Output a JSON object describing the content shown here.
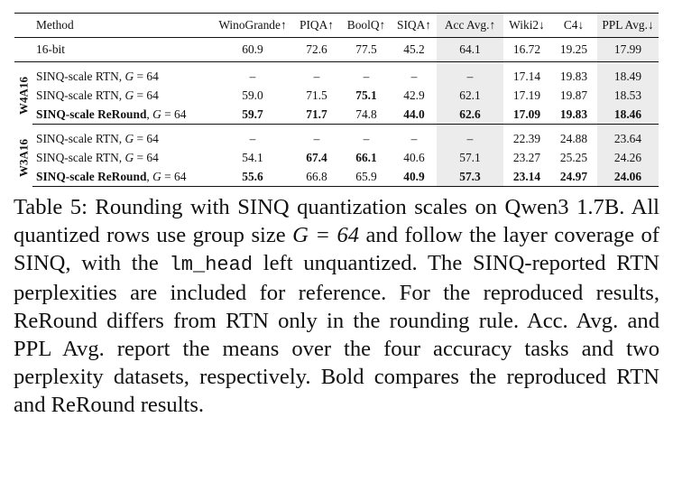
{
  "table": {
    "headers": {
      "method": "Method",
      "wino": "WinoGrande↑",
      "piqa": "PIQA↑",
      "boolq": "BoolQ↑",
      "siqa": "SIQA↑",
      "acc": "Acc Avg.↑",
      "wiki": "Wiki2↓",
      "c4": "C4↓",
      "ppl": "PPL Avg.↓"
    },
    "baseline": {
      "method": "16-bit",
      "wino": "60.9",
      "piqa": "72.6",
      "boolq": "77.5",
      "siqa": "45.2",
      "acc": "64.1",
      "wiki": "16.72",
      "c4": "19.25",
      "ppl": "17.99"
    },
    "groups": [
      {
        "label": "W4A16",
        "rows": [
          {
            "method_name": "SINQ-scale RTN",
            "method_suffix": ", G = 64",
            "wino": "–",
            "piqa": "–",
            "boolq": "–",
            "siqa": "–",
            "acc": "–",
            "wiki": "17.14",
            "c4": "19.83",
            "ppl": "18.49"
          },
          {
            "method_name": "SINQ-scale RTN",
            "method_suffix": ", G = 64",
            "wino": "59.0",
            "piqa": "71.5",
            "boolq": "75.1",
            "siqa": "42.9",
            "acc": "62.1",
            "wiki": "17.19",
            "c4": "19.87",
            "ppl": "18.53"
          },
          {
            "method_name": "SINQ-scale ReRound",
            "method_suffix": ", G = 64",
            "wino": "59.7",
            "piqa": "71.7",
            "boolq": "74.8",
            "siqa": "44.0",
            "acc": "62.6",
            "wiki": "17.09",
            "c4": "19.83",
            "ppl": "18.46"
          }
        ]
      },
      {
        "label": "W3A16",
        "rows": [
          {
            "method_name": "SINQ-scale RTN",
            "method_suffix": ", G = 64",
            "wino": "–",
            "piqa": "–",
            "boolq": "–",
            "siqa": "–",
            "acc": "–",
            "wiki": "22.39",
            "c4": "24.88",
            "ppl": "23.64"
          },
          {
            "method_name": "SINQ-scale RTN",
            "method_suffix": ", G = 64",
            "wino": "54.1",
            "piqa": "67.4",
            "boolq": "66.1",
            "siqa": "40.6",
            "acc": "57.1",
            "wiki": "23.27",
            "c4": "25.25",
            "ppl": "24.26"
          },
          {
            "method_name": "SINQ-scale ReRound",
            "method_suffix": ", G = 64",
            "wino": "55.6",
            "piqa": "66.8",
            "boolq": "65.9",
            "siqa": "40.9",
            "acc": "57.3",
            "wiki": "23.14",
            "c4": "24.97",
            "ppl": "24.06"
          }
        ]
      }
    ]
  },
  "caption": {
    "lead": "Table 5: Rounding with SINQ quantization scales on Qwen3 1.7B. All quantized rows use group size ",
    "formula": "G = 64",
    "mid": " and follow the layer coverage of SINQ, with the ",
    "code": "lm_head",
    "tail": " left unquantized. The SINQ-reported RTN perplexities are included for reference. For the reproduced results, ReRound differs from RTN only in the rounding rule. Acc. Avg. and PPL Avg. report the means over the four accuracy tasks and two perplexity datasets, respectively. Bold compares the reproduced RTN and ReRound results."
  }
}
